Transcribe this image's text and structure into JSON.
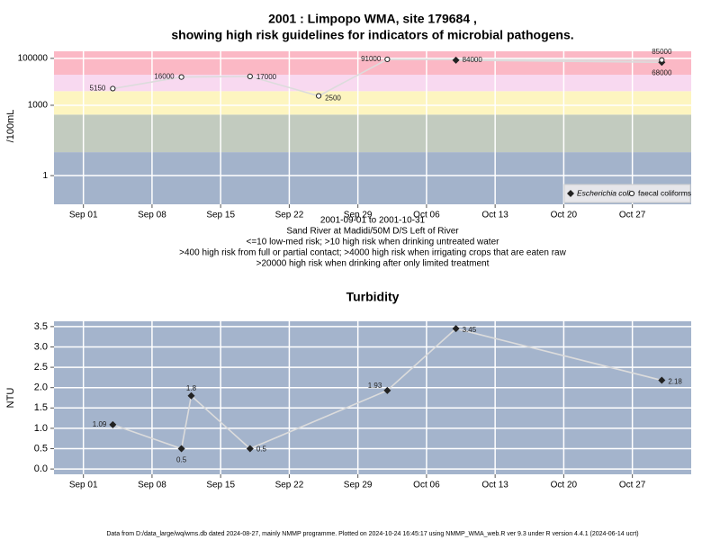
{
  "header": {
    "title_lines": [
      "2001 : Limpopo WMA, site 179684 ,",
      "showing high risk guidelines for indicators of microbial pathogens."
    ]
  },
  "notes": [
    "2001-09-01 to 2001-10-31",
    "Sand River at Madidi/50M D/S Left of River",
    "<=10 low-med risk; >10 high risk when drinking untreated water",
    ">400 high risk from full or partial contact; >4000 high risk when irrigating crops that are eaten raw",
    ">20000 high risk when drinking after only limited treatment"
  ],
  "footer": "Data from D:/data_large/wq/wms.db dated 2024-08-27, mainly NMMP programme. Plotted on 2024-10-24 16:45:17 using NMMP_WMA_web.R ver 9.3 under R version 4.4.1 (2024-06-14 ucrt)",
  "chart_data": [
    {
      "type": "scatter-line",
      "ylabel": "/100mL",
      "log_y": true,
      "grid": true,
      "legend": "bottom-right",
      "xlim": [
        "2001-08-29",
        "2001-11-02"
      ],
      "ylim": [
        0.06,
        200000
      ],
      "xticks": [
        {
          "value": "2001-09-01",
          "label": "Sep 01"
        },
        {
          "value": "2001-09-08",
          "label": "Sep 08"
        },
        {
          "value": "2001-09-15",
          "label": "Sep 15"
        },
        {
          "value": "2001-09-22",
          "label": "Sep 22"
        },
        {
          "value": "2001-09-29",
          "label": "Sep 29"
        },
        {
          "value": "2001-10-06",
          "label": "Oct 06"
        },
        {
          "value": "2001-10-13",
          "label": "Oct 13"
        },
        {
          "value": "2001-10-20",
          "label": "Oct 20"
        },
        {
          "value": "2001-10-27",
          "label": "Oct 27"
        }
      ],
      "yticks": [
        1,
        1000,
        100000
      ],
      "bands": [
        10,
        400,
        4000,
        20000
      ],
      "band_colors": [
        "#a3b3cb",
        "#c2cbbf",
        "#fdf5c0",
        "#f8d9f0",
        "#fbb8c5"
      ],
      "series": [
        {
          "name": "Escherichia coli",
          "marker": "diamond",
          "color": "#222222",
          "line_color": "#dcdcdc",
          "x": [
            "2001-10-09",
            "2001-10-30"
          ],
          "values": [
            84000,
            68000
          ]
        },
        {
          "name": "faecal coliforms",
          "marker": "circle",
          "color": "#222222",
          "line_color": "#dcdcdc",
          "x": [
            "2001-09-04",
            "2001-09-11",
            "2001-09-18",
            "2001-09-25",
            "2001-10-02",
            "2001-10-30"
          ],
          "values": [
            5150,
            16000,
            17000,
            2500,
            91000,
            85000
          ]
        }
      ]
    },
    {
      "type": "scatter-line",
      "title": "Turbidity",
      "ylabel": "NTU",
      "log_y": false,
      "grid": true,
      "background": "#a4b4cc",
      "xlim": [
        "2001-08-29",
        "2001-11-02"
      ],
      "ylim": [
        -0.13,
        3.63
      ],
      "xticks": [
        {
          "value": "2001-09-01",
          "label": "Sep 01"
        },
        {
          "value": "2001-09-08",
          "label": "Sep 08"
        },
        {
          "value": "2001-09-15",
          "label": "Sep 15"
        },
        {
          "value": "2001-09-22",
          "label": "Sep 22"
        },
        {
          "value": "2001-09-29",
          "label": "Sep 29"
        },
        {
          "value": "2001-10-06",
          "label": "Oct 06"
        },
        {
          "value": "2001-10-13",
          "label": "Oct 13"
        },
        {
          "value": "2001-10-20",
          "label": "Oct 20"
        },
        {
          "value": "2001-10-27",
          "label": "Oct 27"
        }
      ],
      "yticks": [
        {
          "value": 0,
          "label": "0.0"
        },
        0.5,
        {
          "value": 1,
          "label": "1.0"
        },
        1.5,
        {
          "value": 2,
          "label": "2.0"
        },
        2.5,
        {
          "value": 3,
          "label": "3.0"
        },
        3.5
      ],
      "series": [
        {
          "marker": "diamond",
          "color": "#222222",
          "line_color": "#dcdcdc",
          "x": [
            "2001-09-04",
            "2001-09-11",
            "2001-09-12",
            "2001-09-18",
            "2001-10-02",
            "2001-10-09",
            "2001-10-30"
          ],
          "values": [
            1.09,
            0.5,
            1.8,
            0.5,
            1.93,
            3.45,
            2.18
          ]
        }
      ]
    }
  ]
}
